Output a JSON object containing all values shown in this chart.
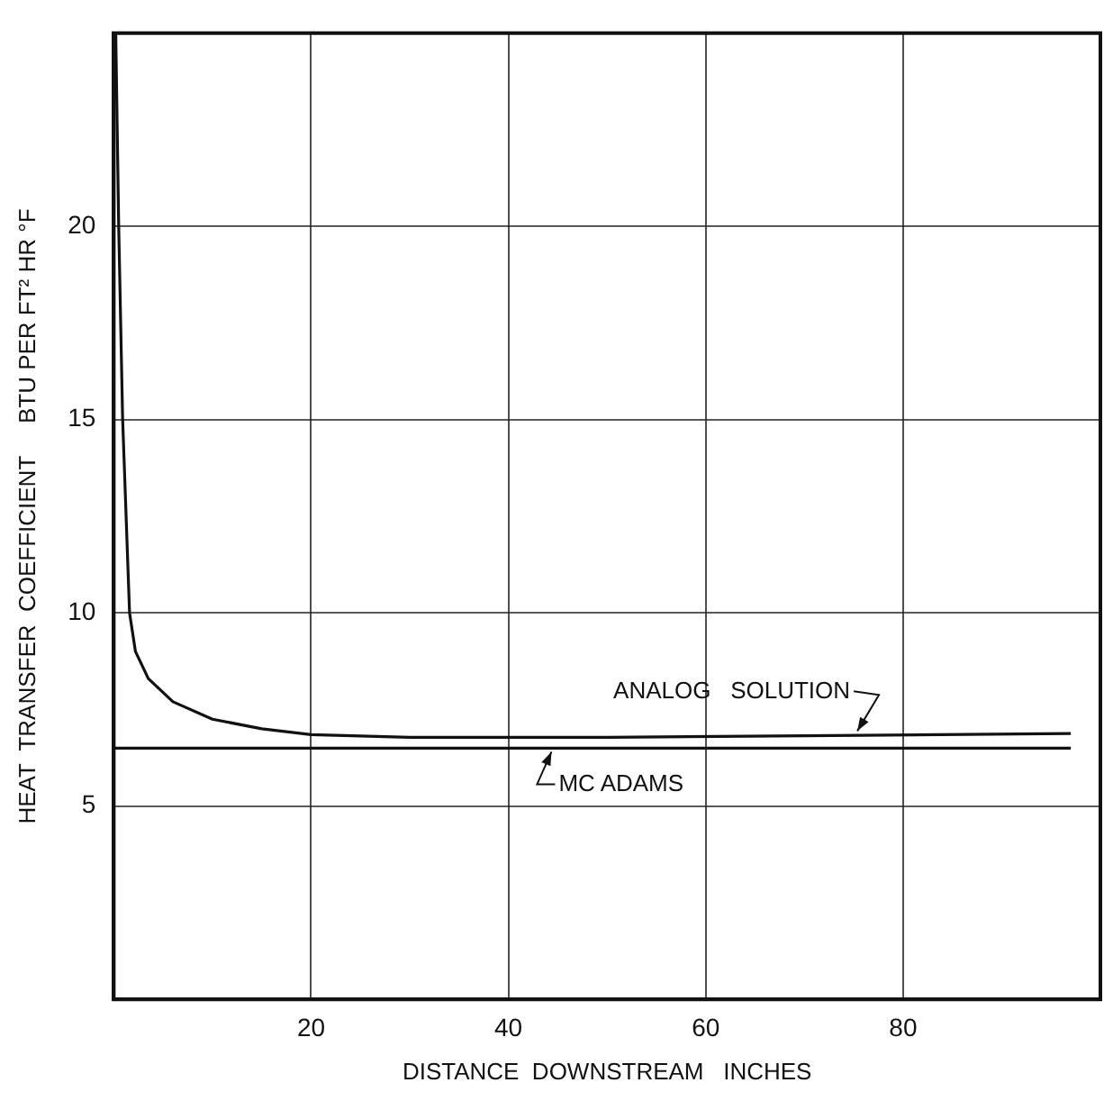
{
  "chart_data": {
    "type": "line",
    "xlabel": "DISTANCE  DOWNSTREAM   INCHES",
    "ylabel": "HEAT  TRANSFER  COEFFICIENT     BTU PER FT² HR °F",
    "xlim": [
      0,
      100
    ],
    "ylim": [
      0,
      25
    ],
    "xticks": [
      20,
      40,
      60,
      80
    ],
    "yticks": [
      5,
      10,
      15,
      20
    ],
    "grid": true,
    "legend": false,
    "marker": "none",
    "line_style": "solid",
    "series": [
      {
        "color": "#111111",
        "x": [
          0.2,
          0.5,
          0.9,
          1.6,
          2.2,
          3.5,
          6,
          10,
          15,
          20,
          30,
          50,
          70,
          97
        ],
        "values": [
          25,
          20,
          15,
          10,
          9,
          8.3,
          7.7,
          7.25,
          7.0,
          6.85,
          6.78,
          6.78,
          6.82,
          6.88
        ]
      },
      {
        "color": "#111111",
        "x": [
          0,
          97
        ],
        "values": [
          6.5,
          6.5
        ]
      }
    ],
    "annotations": [
      {
        "text": "ANALOG   SOLUTION",
        "x": 75,
        "y": 6.85
      },
      {
        "text": "MC ADAMS",
        "x": 44,
        "y": 6.5
      }
    ]
  }
}
